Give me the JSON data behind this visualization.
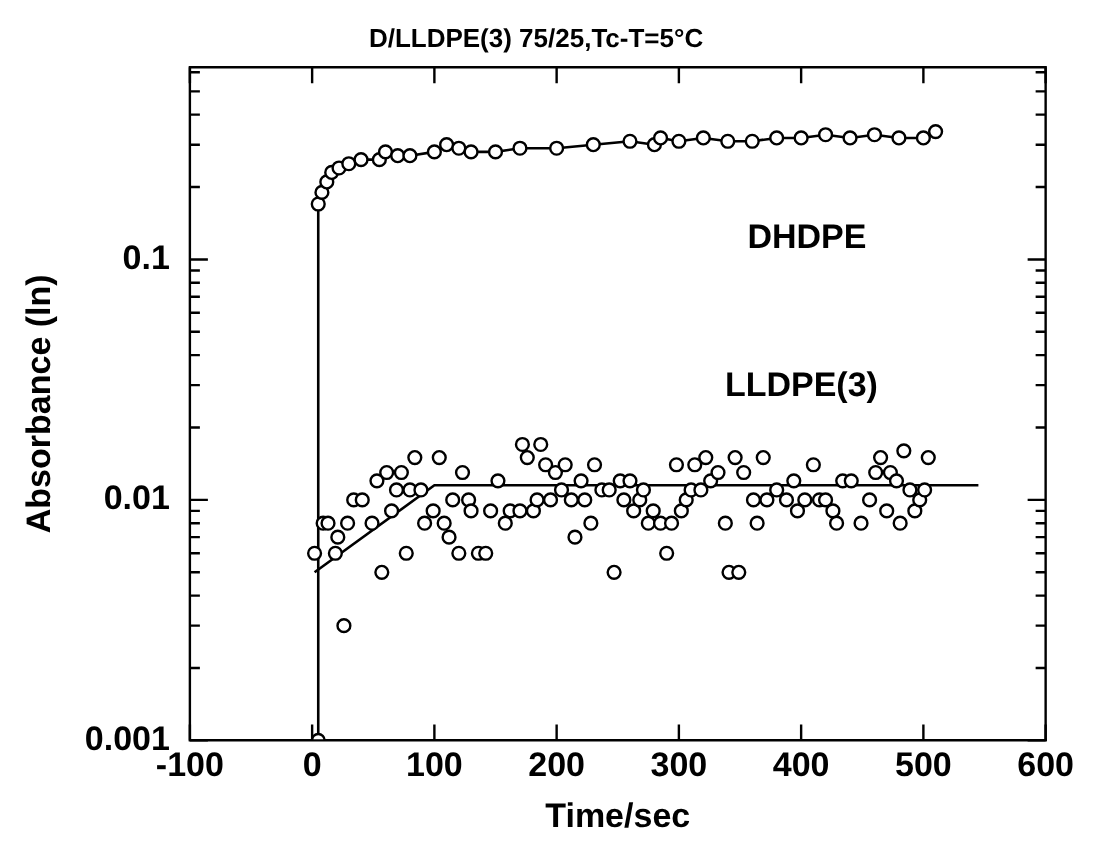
{
  "chart_data": {
    "type": "scatter",
    "title": "D/LLDPE(3) 75/25,Tc-T=5°C",
    "xlabel": "Time/sec",
    "ylabel": "Absorbance (ln)",
    "log": "y",
    "grid": false,
    "legend": false,
    "xlim": [
      -100,
      600
    ],
    "xticks": [
      -100,
      0,
      100,
      200,
      300,
      400,
      500,
      600
    ],
    "ylim": [
      0.001,
      0.63
    ],
    "yticks": [
      0.001,
      {
        "value": 0.002,
        "label": null
      },
      {
        "value": 0.003,
        "label": null
      },
      {
        "value": 0.004,
        "label": null
      },
      {
        "value": 0.005,
        "label": null
      },
      {
        "value": 0.006,
        "label": null
      },
      {
        "value": 0.007,
        "label": null
      },
      {
        "value": 0.008,
        "label": null
      },
      {
        "value": 0.009,
        "label": null
      },
      0.01,
      {
        "value": 0.02,
        "label": null
      },
      {
        "value": 0.03,
        "label": null
      },
      {
        "value": 0.04,
        "label": null
      },
      {
        "value": 0.05,
        "label": null
      },
      {
        "value": 0.06,
        "label": null
      },
      {
        "value": 0.07,
        "label": null
      },
      {
        "value": 0.08,
        "label": null
      },
      {
        "value": 0.09,
        "label": null
      },
      0.1,
      {
        "value": 0.2,
        "label": null
      },
      {
        "value": 0.3,
        "label": null
      },
      {
        "value": 0.4,
        "label": null
      },
      {
        "value": 0.5,
        "label": null
      },
      {
        "value": 0.6,
        "label": null
      }
    ],
    "series": [
      {
        "name": "DHDPE",
        "type": "line",
        "marker": "circle",
        "color": "#000000",
        "x": [
          5,
          5,
          8,
          12,
          16,
          22,
          30,
          40,
          55,
          60,
          70,
          80,
          100,
          110,
          120,
          130,
          150,
          170,
          200,
          230,
          260,
          280,
          285,
          300,
          320,
          340,
          360,
          380,
          400,
          420,
          440,
          460,
          480,
          500,
          510
        ],
        "values": [
          0.001,
          0.17,
          0.19,
          0.21,
          0.23,
          0.24,
          0.25,
          0.26,
          0.26,
          0.28,
          0.27,
          0.27,
          0.28,
          0.3,
          0.29,
          0.28,
          0.28,
          0.29,
          0.29,
          0.3,
          0.31,
          0.3,
          0.32,
          0.31,
          0.32,
          0.31,
          0.31,
          0.32,
          0.32,
          0.33,
          0.32,
          0.33,
          0.32,
          0.32,
          0.34
        ]
      },
      {
        "name": "LLDPE(3)",
        "type": "scatter",
        "marker": "circle",
        "color": "#000000",
        "x": [
          2,
          9,
          13,
          19,
          21,
          26,
          29,
          34,
          41,
          49,
          53,
          57,
          61,
          65,
          69,
          73,
          77,
          80,
          84,
          89,
          92,
          99,
          104,
          108,
          112,
          115,
          120,
          123,
          128,
          130,
          136,
          142,
          146,
          152,
          158,
          162,
          170,
          172,
          176,
          181,
          184,
          187,
          191,
          195,
          199,
          204,
          207,
          212,
          215,
          220,
          223,
          228,
          231,
          237,
          243,
          247,
          252,
          255,
          260,
          263,
          268,
          271,
          275,
          279,
          285,
          290,
          294,
          298,
          302,
          306,
          310,
          313,
          318,
          322,
          326,
          332,
          338,
          341,
          346,
          349,
          353,
          361,
          364,
          369,
          372,
          380,
          388,
          394,
          397,
          403,
          410,
          415,
          420,
          426,
          429,
          434,
          441,
          449,
          456,
          461,
          465,
          470,
          473,
          478,
          481,
          484,
          489,
          493,
          497,
          501,
          504
        ],
        "values": [
          0.006,
          0.008,
          0.008,
          0.006,
          0.007,
          0.003,
          0.008,
          0.01,
          0.01,
          0.008,
          0.012,
          0.005,
          0.013,
          0.009,
          0.011,
          0.013,
          0.006,
          0.011,
          0.015,
          0.011,
          0.008,
          0.009,
          0.015,
          0.008,
          0.007,
          0.01,
          0.006,
          0.013,
          0.01,
          0.009,
          0.006,
          0.006,
          0.009,
          0.012,
          0.008,
          0.009,
          0.009,
          0.017,
          0.015,
          0.009,
          0.01,
          0.017,
          0.014,
          0.01,
          0.013,
          0.011,
          0.014,
          0.01,
          0.007,
          0.012,
          0.01,
          0.008,
          0.014,
          0.011,
          0.011,
          0.005,
          0.012,
          0.01,
          0.012,
          0.009,
          0.01,
          0.011,
          0.008,
          0.009,
          0.008,
          0.006,
          0.008,
          0.014,
          0.009,
          0.01,
          0.011,
          0.014,
          0.011,
          0.015,
          0.012,
          0.013,
          0.008,
          0.005,
          0.015,
          0.005,
          0.013,
          0.01,
          0.008,
          0.015,
          0.01,
          0.011,
          0.01,
          0.012,
          0.009,
          0.01,
          0.014,
          0.01,
          0.01,
          0.009,
          0.008,
          0.012,
          0.012,
          0.008,
          0.01,
          0.013,
          0.015,
          0.009,
          0.013,
          0.012,
          0.008,
          0.016,
          0.011,
          0.009,
          0.01,
          0.011,
          0.015
        ]
      },
      {
        "type": "line",
        "marker": "none",
        "color": "#000000",
        "x": [
          2,
          100,
          545
        ],
        "values": [
          0.005,
          0.0115,
          0.0115
        ]
      }
    ]
  }
}
